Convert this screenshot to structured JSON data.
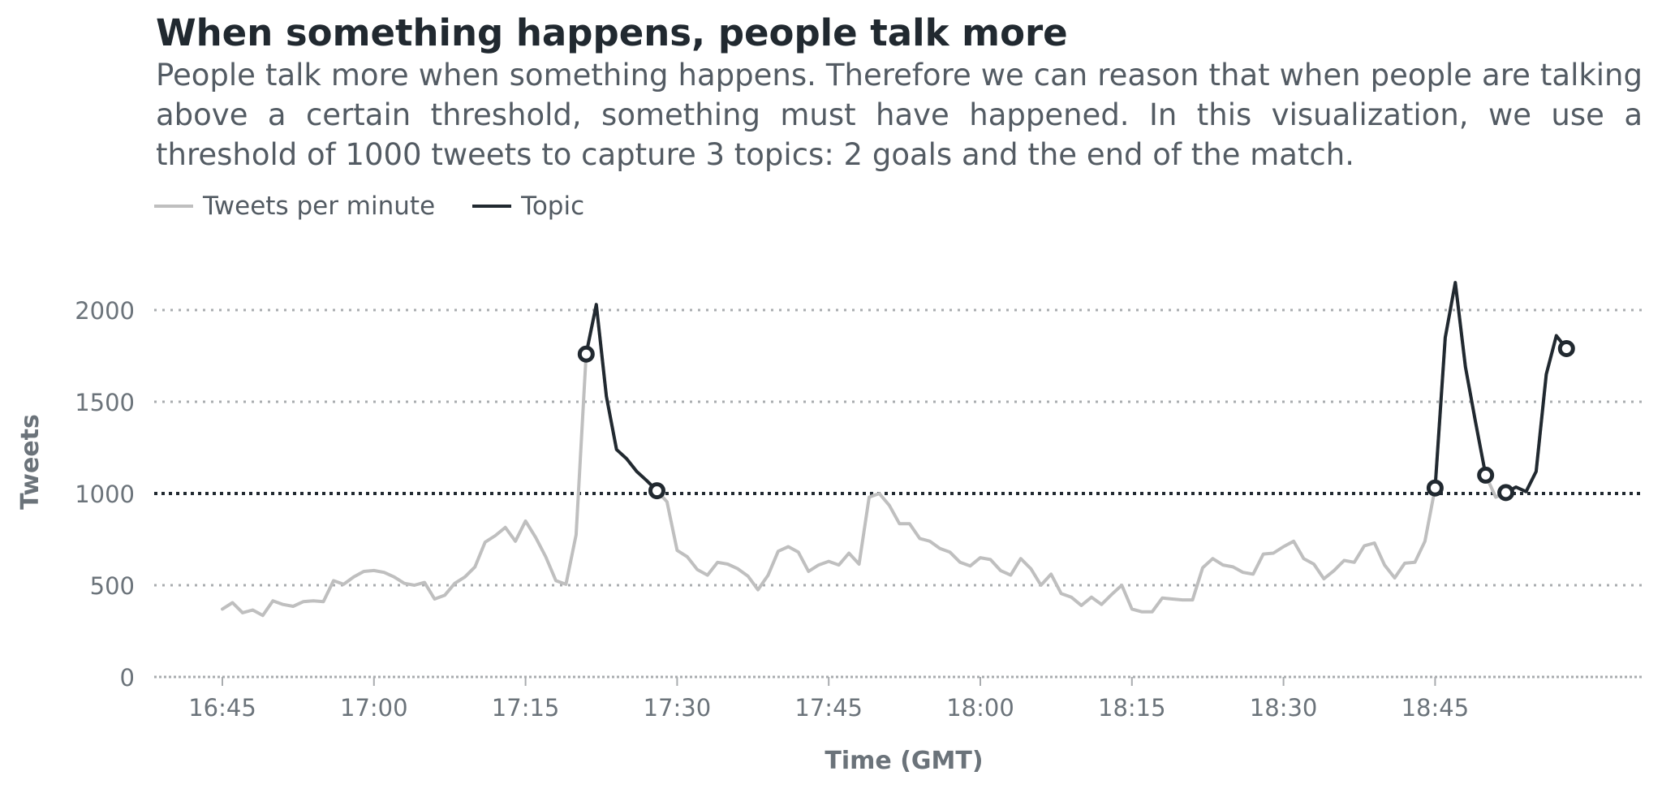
{
  "colors": {
    "tweets_line": "#bfbfbf",
    "topic_line": "#212930",
    "gridline": "#a9acaf",
    "threshold": "#212930",
    "text_dark": "#212930",
    "text_muted": "#6b737a"
  },
  "chart_data": {
    "type": "line",
    "title": "When something happens, people talk more",
    "subtitle": "People talk more when something happens. Therefore we can reason that when people are talking above a certain threshold, something must have happened. In this visualization, we use a threshold of 1000 tweets to capture 3 topics: 2 goals and the end of the match.",
    "xlabel": "Time (GMT)",
    "ylabel": "Tweets",
    "ylim": [
      0,
      2150
    ],
    "yticks": [
      0,
      500,
      1000,
      1500,
      2000
    ],
    "xticks": [
      "16:45",
      "17:00",
      "17:15",
      "17:30",
      "17:45",
      "18:00",
      "18:15",
      "18:30",
      "18:45"
    ],
    "threshold": 1000,
    "grid": true,
    "legend": {
      "placement": "top-left",
      "entries": [
        {
          "label": "Tweets per minute",
          "color": "#bfbfbf"
        },
        {
          "label": "Topic",
          "color": "#212930"
        }
      ]
    },
    "series": [
      {
        "name": "Tweets per minute",
        "points": [
          [
            "16:45",
            370
          ],
          [
            "16:46",
            405
          ],
          [
            "16:47",
            350
          ],
          [
            "16:48",
            365
          ],
          [
            "16:49",
            335
          ],
          [
            "16:50",
            415
          ],
          [
            "16:51",
            395
          ],
          [
            "16:52",
            385
          ],
          [
            "16:53",
            410
          ],
          [
            "16:54",
            415
          ],
          [
            "16:55",
            410
          ],
          [
            "16:56",
            525
          ],
          [
            "16:57",
            505
          ],
          [
            "16:58",
            545
          ],
          [
            "16:59",
            575
          ],
          [
            "17:00",
            580
          ],
          [
            "17:01",
            570
          ],
          [
            "17:02",
            545
          ],
          [
            "17:03",
            510
          ],
          [
            "17:04",
            500
          ],
          [
            "17:05",
            515
          ],
          [
            "17:06",
            425
          ],
          [
            "17:07",
            445
          ],
          [
            "17:08",
            510
          ],
          [
            "17:09",
            545
          ],
          [
            "17:10",
            600
          ],
          [
            "17:11",
            735
          ],
          [
            "17:12",
            770
          ],
          [
            "17:13",
            815
          ],
          [
            "17:14",
            740
          ],
          [
            "17:15",
            850
          ],
          [
            "17:16",
            760
          ],
          [
            "17:17",
            655
          ],
          [
            "17:18",
            525
          ],
          [
            "17:19",
            505
          ],
          [
            "17:20",
            775
          ],
          [
            "17:21",
            1760
          ],
          [
            "17:22",
            2030
          ],
          [
            "17:23",
            1530
          ],
          [
            "17:24",
            1240
          ],
          [
            "17:25",
            1190
          ],
          [
            "17:26",
            1120
          ],
          [
            "17:27",
            1070
          ],
          [
            "17:28",
            1015
          ],
          [
            "17:29",
            955
          ],
          [
            "17:30",
            690
          ],
          [
            "17:31",
            655
          ],
          [
            "17:32",
            585
          ],
          [
            "17:33",
            555
          ],
          [
            "17:34",
            625
          ],
          [
            "17:35",
            615
          ],
          [
            "17:36",
            590
          ],
          [
            "17:37",
            550
          ],
          [
            "17:38",
            475
          ],
          [
            "17:39",
            555
          ],
          [
            "17:40",
            685
          ],
          [
            "17:41",
            710
          ],
          [
            "17:42",
            680
          ],
          [
            "17:43",
            575
          ],
          [
            "17:44",
            610
          ],
          [
            "17:45",
            630
          ],
          [
            "17:46",
            610
          ],
          [
            "17:47",
            675
          ],
          [
            "17:48",
            615
          ],
          [
            "17:49",
            980
          ],
          [
            "17:50",
            1000
          ],
          [
            "17:51",
            935
          ],
          [
            "17:52",
            835
          ],
          [
            "17:53",
            835
          ],
          [
            "17:54",
            755
          ],
          [
            "17:55",
            740
          ],
          [
            "17:56",
            700
          ],
          [
            "17:57",
            680
          ],
          [
            "17:58",
            625
          ],
          [
            "17:59",
            605
          ],
          [
            "18:00",
            650
          ],
          [
            "18:01",
            640
          ],
          [
            "18:02",
            580
          ],
          [
            "18:03",
            555
          ],
          [
            "18:04",
            645
          ],
          [
            "18:05",
            590
          ],
          [
            "18:06",
            500
          ],
          [
            "18:07",
            560
          ],
          [
            "18:08",
            455
          ],
          [
            "18:09",
            435
          ],
          [
            "18:10",
            390
          ],
          [
            "18:11",
            435
          ],
          [
            "18:12",
            395
          ],
          [
            "18:13",
            450
          ],
          [
            "18:14",
            500
          ],
          [
            "18:15",
            370
          ],
          [
            "18:16",
            355
          ],
          [
            "18:17",
            355
          ],
          [
            "18:18",
            430
          ],
          [
            "18:19",
            425
          ],
          [
            "18:20",
            420
          ],
          [
            "18:21",
            420
          ],
          [
            "18:22",
            595
          ],
          [
            "18:23",
            645
          ],
          [
            "18:24",
            610
          ],
          [
            "18:25",
            600
          ],
          [
            "18:26",
            570
          ],
          [
            "18:27",
            560
          ],
          [
            "18:28",
            670
          ],
          [
            "18:29",
            675
          ],
          [
            "18:30",
            710
          ],
          [
            "18:31",
            740
          ],
          [
            "18:32",
            645
          ],
          [
            "18:33",
            615
          ],
          [
            "18:34",
            535
          ],
          [
            "18:35",
            580
          ],
          [
            "18:36",
            635
          ],
          [
            "18:37",
            625
          ],
          [
            "18:38",
            715
          ],
          [
            "18:39",
            730
          ],
          [
            "18:40",
            610
          ],
          [
            "18:41",
            540
          ],
          [
            "18:42",
            620
          ],
          [
            "18:43",
            625
          ],
          [
            "18:44",
            740
          ],
          [
            "18:45",
            1030
          ],
          [
            "18:46",
            1850
          ],
          [
            "18:47",
            2150
          ],
          [
            "18:48",
            1690
          ],
          [
            "18:49",
            1390
          ],
          [
            "18:50",
            1100
          ],
          [
            "18:51",
            980
          ],
          [
            "18:52",
            1005
          ],
          [
            "18:53",
            1035
          ],
          [
            "18:54",
            1010
          ],
          [
            "18:55",
            1120
          ],
          [
            "18:56",
            1650
          ],
          [
            "18:57",
            1860
          ],
          [
            "18:58",
            1790
          ]
        ]
      },
      {
        "name": "Topic",
        "segments": [
          [
            [
              "17:21",
              1760
            ],
            [
              "17:22",
              2030
            ],
            [
              "17:23",
              1530
            ],
            [
              "17:24",
              1240
            ],
            [
              "17:25",
              1190
            ],
            [
              "17:26",
              1120
            ],
            [
              "17:27",
              1070
            ],
            [
              "17:28",
              1015
            ]
          ],
          [
            [
              "18:45",
              1030
            ],
            [
              "18:46",
              1850
            ],
            [
              "18:47",
              2150
            ],
            [
              "18:48",
              1690
            ],
            [
              "18:49",
              1390
            ],
            [
              "18:50",
              1100
            ]
          ],
          [
            [
              "18:52",
              1005
            ],
            [
              "18:53",
              1035
            ],
            [
              "18:54",
              1010
            ],
            [
              "18:55",
              1120
            ],
            [
              "18:56",
              1650
            ],
            [
              "18:57",
              1860
            ],
            [
              "18:58",
              1790
            ]
          ]
        ],
        "markers": [
          [
            "17:21",
            1760
          ],
          [
            "17:28",
            1015
          ],
          [
            "18:45",
            1030
          ],
          [
            "18:50",
            1100
          ],
          [
            "18:52",
            1005
          ],
          [
            "18:58",
            1790
          ]
        ]
      }
    ]
  }
}
